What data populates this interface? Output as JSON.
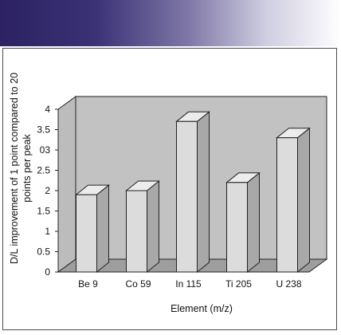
{
  "chart_data": {
    "type": "bar",
    "categories": [
      "Be 9",
      "Co 59",
      "In 115",
      "Ti 205",
      "U 238"
    ],
    "values": [
      1.9,
      2.0,
      3.7,
      2.2,
      3.3
    ],
    "ylabel_lines": [
      "D/L improvement of 1 point compared to 20",
      "points per peak"
    ],
    "xlabel": "Element (m/z)",
    "ylim": [
      0,
      4
    ],
    "ytick_labels": [
      "0",
      "0.5",
      "1",
      "1.5",
      "2",
      "2.5",
      "03",
      "3.5",
      "4"
    ],
    "grid": false,
    "colors": {
      "bar_front": "#dcdcdc",
      "bar_top": "#ececec",
      "bar_side": "#a8a8a8",
      "wall": "#c2c2c2",
      "floor": "#9e9e9e",
      "header_dark": "#2c2262"
    }
  }
}
